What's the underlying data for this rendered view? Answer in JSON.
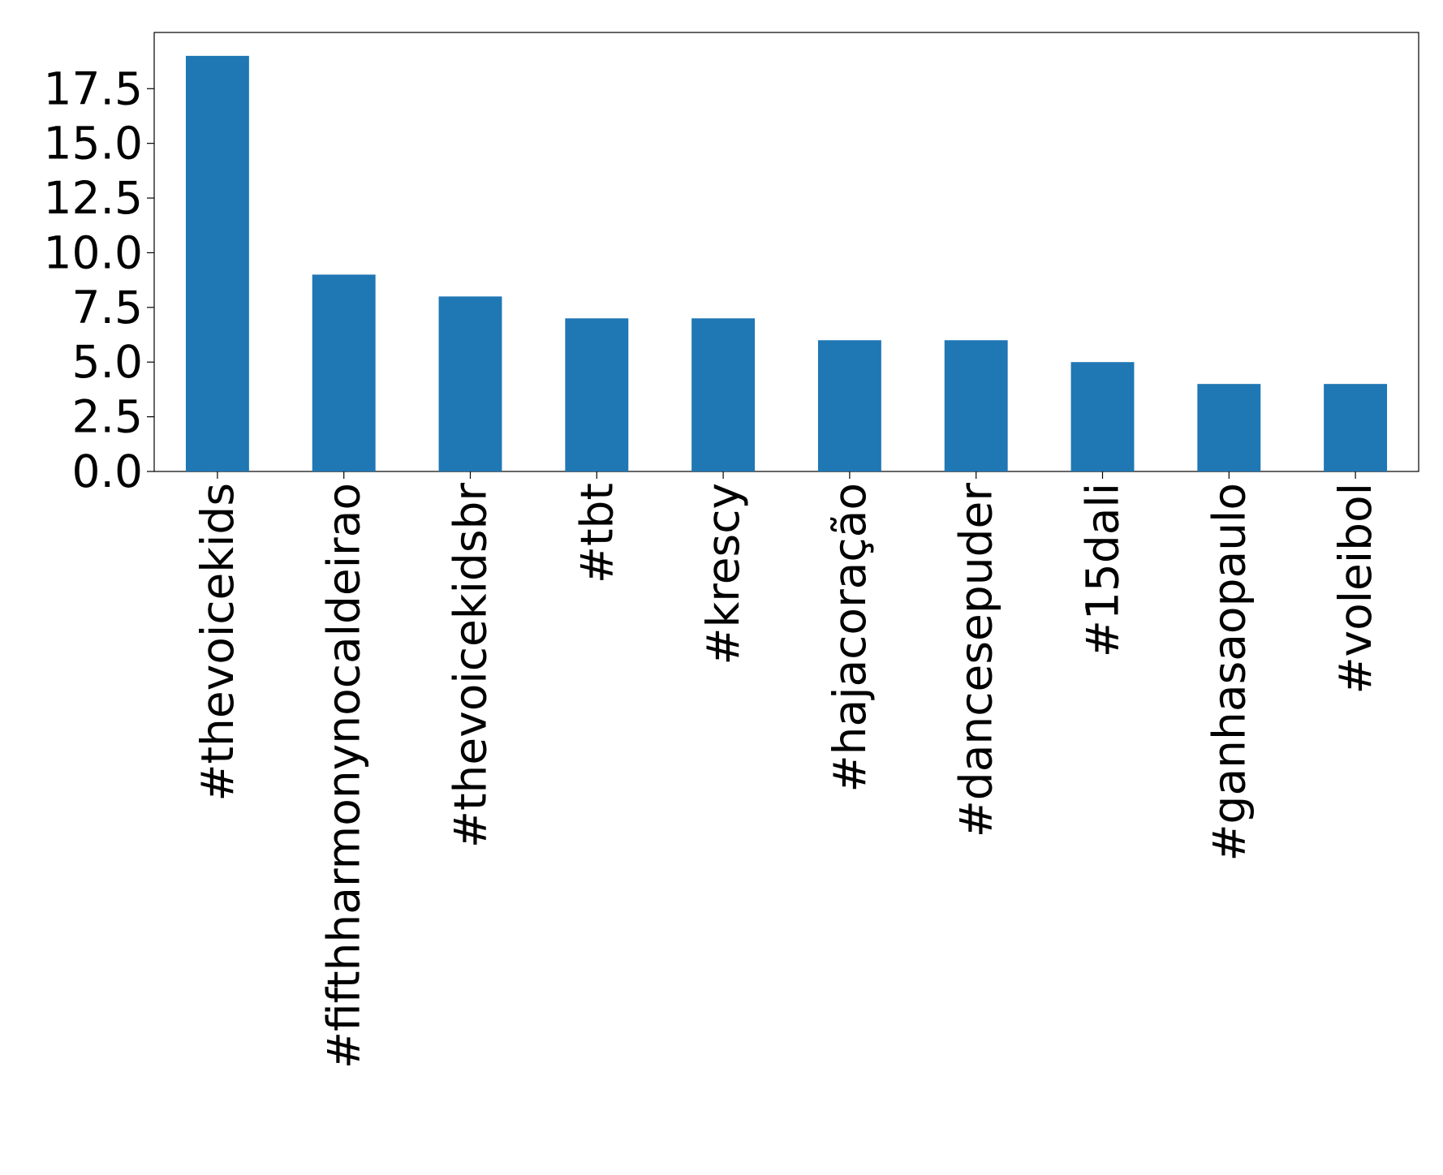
{
  "chart_data": {
    "type": "bar",
    "categories": [
      "#thevoicekids",
      "#fifthharmonynocaldeirao",
      "#thevoicekidsbr",
      "#tbt",
      "#krescy",
      "#hajacoração",
      "#dancesepuder",
      "#15dali",
      "#ganhasaopaulo",
      "#voleibol"
    ],
    "values": [
      19,
      9,
      8,
      7,
      7,
      6,
      6,
      5,
      4,
      4
    ],
    "color": "#1f77b4",
    "ylim": [
      0,
      20.07
    ],
    "yticks": [
      {
        "value": 0,
        "label": "0.0"
      },
      2.5,
      {
        "value": 5,
        "label": "5.0"
      },
      7.5,
      {
        "value": 10,
        "label": "10.0"
      },
      12.5,
      {
        "value": 15,
        "label": "15.0"
      },
      17.5
    ]
  }
}
